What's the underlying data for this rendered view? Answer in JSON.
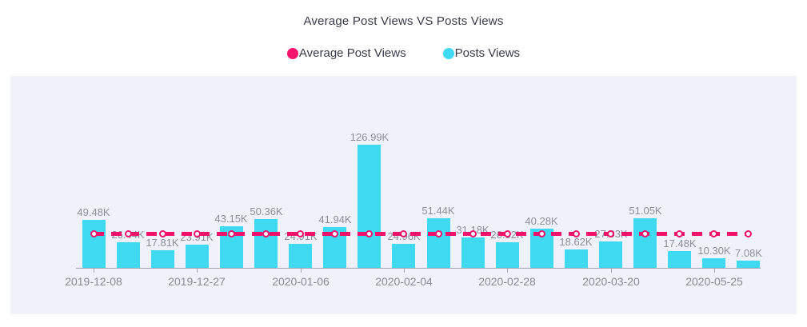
{
  "title": "Average Post Views VS Posts Views",
  "legend": {
    "items": [
      {
        "label": "Average Post Views",
        "color": "#f5156d"
      },
      {
        "label": "Posts Views",
        "color": "#3fd9f2"
      }
    ]
  },
  "colors": {
    "bar": "#3fd9f2",
    "avg_line": "#f2106b",
    "panel_background": "#f0f2fb",
    "title_text": "#3a3a4c",
    "value_label_text": "#8e8e9a",
    "axis": "#9fa5b2"
  },
  "chart_data": {
    "type": "bar",
    "title": "Average Post Views VS Posts Views",
    "legend_position": "top",
    "grid": false,
    "ylim": [
      0,
      140
    ],
    "unit": "K",
    "series": [
      {
        "name": "Posts Views",
        "type": "bar",
        "color": "#3fd9f2",
        "values": [
          49.48,
          26.44,
          17.81,
          23.91,
          43.15,
          50.36,
          24.91,
          41.94,
          126.99,
          24.96,
          51.44,
          31.18,
          26.52,
          40.28,
          18.62,
          27.03,
          51.05,
          17.48,
          10.3,
          7.08
        ],
        "labels": [
          "49.48K",
          "26.44K",
          "17.81K",
          "23.91K",
          "43.15K",
          "50.36K",
          "24.91K",
          "41.94K",
          "126.99K",
          "24.96K",
          "51.44K",
          "31.18K",
          "26.52K",
          "40.28K",
          "18.62K",
          "27.03K",
          "51.05K",
          "17.48K",
          "10.30K",
          "7.08K"
        ]
      },
      {
        "name": "Average Post Views",
        "type": "line",
        "style": "dashed-with-point-markers",
        "color": "#f2106b",
        "constant_value": 35.5,
        "values": [
          35.5,
          35.5,
          35.5,
          35.5,
          35.5,
          35.5,
          35.5,
          35.5,
          35.5,
          35.5,
          35.5,
          35.5,
          35.5,
          35.5,
          35.5,
          35.5,
          35.5,
          35.5,
          35.5,
          35.5
        ]
      }
    ],
    "x_tick_labels": [
      {
        "index": 0,
        "label": "2019-12-08"
      },
      {
        "index": 3,
        "label": "2019-12-27"
      },
      {
        "index": 6,
        "label": "2020-01-06"
      },
      {
        "index": 9,
        "label": "2020-02-04"
      },
      {
        "index": 12,
        "label": "2020-02-28"
      },
      {
        "index": 15,
        "label": "2020-03-20"
      },
      {
        "index": 18,
        "label": "2020-05-25"
      }
    ]
  }
}
